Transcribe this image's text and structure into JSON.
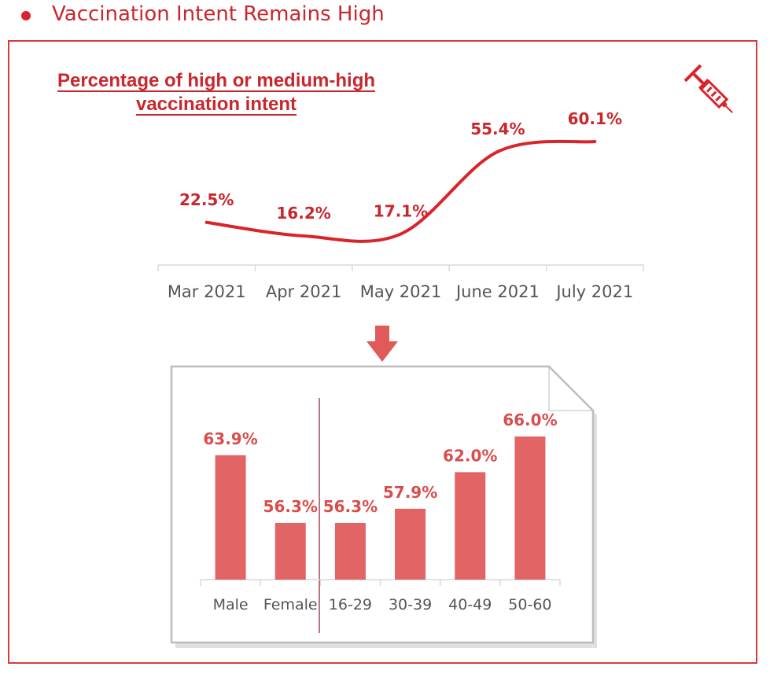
{
  "header": {
    "title": "Vaccination Intent Remains High"
  },
  "colors": {
    "accent": "#c8272d",
    "bar": "#e36464",
    "frame": "#d83a3a"
  },
  "icons": {
    "top_right": "syringe-icon",
    "connector": "arrow-down-icon"
  },
  "chart_data": [
    {
      "type": "line",
      "title": "Percentage of high or medium-high vaccination intent",
      "categories": [
        "Mar 2021",
        "Apr 2021",
        "May 2021",
        "June 2021",
        "July 2021"
      ],
      "values": [
        22.5,
        16.2,
        17.1,
        55.4,
        60.1
      ],
      "data_labels": [
        "22.5%",
        "16.2%",
        "17.1%",
        "55.4%",
        "60.1%"
      ],
      "unit": "%"
    },
    {
      "type": "bar",
      "categories": [
        "Male",
        "Female",
        "16-29",
        "30-39",
        "40-49",
        "50-60"
      ],
      "values": [
        63.9,
        56.3,
        56.3,
        57.9,
        62.0,
        66.0
      ],
      "data_labels": [
        "63.9%",
        "56.3%",
        "56.3%",
        "57.9%",
        "62.0%",
        "66.0%"
      ],
      "unit": "%"
    }
  ]
}
